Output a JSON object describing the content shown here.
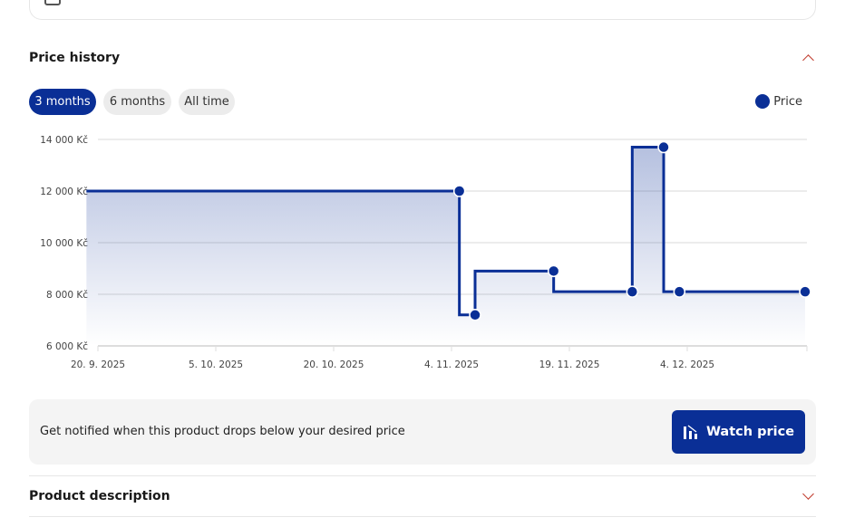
{
  "price_history": {
    "title": "Price history",
    "ranges": [
      {
        "label": "3 months",
        "active": true
      },
      {
        "label": "6 months",
        "active": false
      },
      {
        "label": "All time",
        "active": false
      }
    ],
    "legend_label": "Price"
  },
  "chart_data": {
    "type": "line",
    "step": true,
    "series": [
      {
        "name": "Price",
        "color": "#0a2f96",
        "points": [
          {
            "date": "2025-09-19",
            "value": 12000
          },
          {
            "date": "2025-11-05",
            "value": 12000
          },
          {
            "date": "2025-11-07",
            "value": 7200
          },
          {
            "date": "2025-11-17",
            "value": 8900
          },
          {
            "date": "2025-11-27",
            "value": 8100
          },
          {
            "date": "2025-12-01",
            "value": 13700
          },
          {
            "date": "2025-12-03",
            "value": 8100
          },
          {
            "date": "2025-12-19",
            "value": 8100
          }
        ]
      }
    ],
    "y_ticks": [
      "6 000 Kč",
      "8 000 Kč",
      "10 000 Kč",
      "12 000 Kč",
      "14 000 Kč"
    ],
    "y_tick_values": [
      6000,
      8000,
      10000,
      12000,
      14000
    ],
    "x_ticks": [
      "20. 9. 2025",
      "5. 10. 2025",
      "20. 10. 2025",
      "4. 11. 2025",
      "19. 11. 2025",
      "4. 12. 2025"
    ],
    "x_tick_dates": [
      "2025-09-20",
      "2025-10-05",
      "2025-10-20",
      "2025-11-04",
      "2025-11-19",
      "2025-12-04"
    ],
    "ylim": [
      6000,
      14000
    ],
    "grid": true,
    "legend": "top-right"
  },
  "notify": {
    "text": "Get notified when this product drops below your desired price",
    "button_label": "Watch price"
  },
  "description": {
    "title": "Product description"
  }
}
